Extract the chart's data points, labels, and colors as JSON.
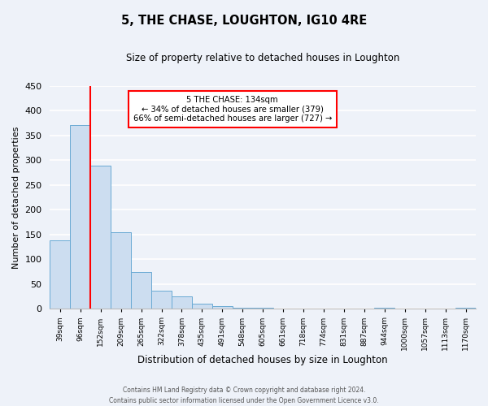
{
  "title": "5, THE CHASE, LOUGHTON, IG10 4RE",
  "subtitle": "Size of property relative to detached houses in Loughton",
  "xlabel": "Distribution of detached houses by size in Loughton",
  "ylabel": "Number of detached properties",
  "bar_labels": [
    "39sqm",
    "96sqm",
    "152sqm",
    "209sqm",
    "265sqm",
    "322sqm",
    "378sqm",
    "435sqm",
    "491sqm",
    "548sqm",
    "605sqm",
    "661sqm",
    "718sqm",
    "774sqm",
    "831sqm",
    "887sqm",
    "944sqm",
    "1000sqm",
    "1057sqm",
    "1113sqm",
    "1170sqm"
  ],
  "bar_values": [
    138,
    370,
    288,
    155,
    74,
    37,
    25,
    11,
    6,
    2,
    2,
    1,
    0,
    0,
    0,
    0,
    2,
    0,
    1,
    1,
    2
  ],
  "bar_color": "#ccddf0",
  "bar_edge_color": "#6aaad4",
  "ylim": [
    0,
    450
  ],
  "yticks": [
    0,
    50,
    100,
    150,
    200,
    250,
    300,
    350,
    400,
    450
  ],
  "vline_x": 1.5,
  "vline_color": "red",
  "annotation_title": "5 THE CHASE: 134sqm",
  "annotation_line1": "← 34% of detached houses are smaller (379)",
  "annotation_line2": "66% of semi-detached houses are larger (727) →",
  "annotation_box_color": "white",
  "annotation_box_edge": "red",
  "footer_line1": "Contains HM Land Registry data © Crown copyright and database right 2024.",
  "footer_line2": "Contains public sector information licensed under the Open Government Licence v3.0.",
  "background_color": "#eef2f9",
  "grid_color": "white"
}
